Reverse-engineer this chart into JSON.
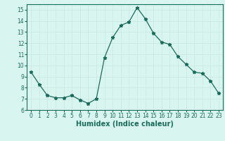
{
  "x": [
    0,
    1,
    2,
    3,
    4,
    5,
    6,
    7,
    8,
    9,
    10,
    11,
    12,
    13,
    14,
    15,
    16,
    17,
    18,
    19,
    20,
    21,
    22,
    23
  ],
  "y": [
    9.4,
    8.3,
    7.3,
    7.1,
    7.1,
    7.3,
    6.9,
    6.6,
    7.0,
    10.7,
    12.5,
    13.6,
    13.9,
    15.2,
    14.2,
    12.9,
    12.1,
    11.9,
    10.8,
    10.1,
    9.4,
    9.3,
    8.6,
    7.5
  ],
  "xlabel": "Humidex (Indice chaleur)",
  "xlim_min": -0.5,
  "xlim_max": 23.5,
  "ylim_min": 6,
  "ylim_max": 15.5,
  "yticks": [
    6,
    7,
    8,
    9,
    10,
    11,
    12,
    13,
    14,
    15
  ],
  "xticks": [
    0,
    1,
    2,
    3,
    4,
    5,
    6,
    7,
    8,
    9,
    10,
    11,
    12,
    13,
    14,
    15,
    16,
    17,
    18,
    19,
    20,
    21,
    22,
    23
  ],
  "line_color": "#1a6b5a",
  "marker": "*",
  "marker_size": 3.5,
  "bg_color": "#d8f5f0",
  "grid_color": "#c8e8e0",
  "xlabel_fontsize": 7,
  "tick_fontsize": 5.5
}
